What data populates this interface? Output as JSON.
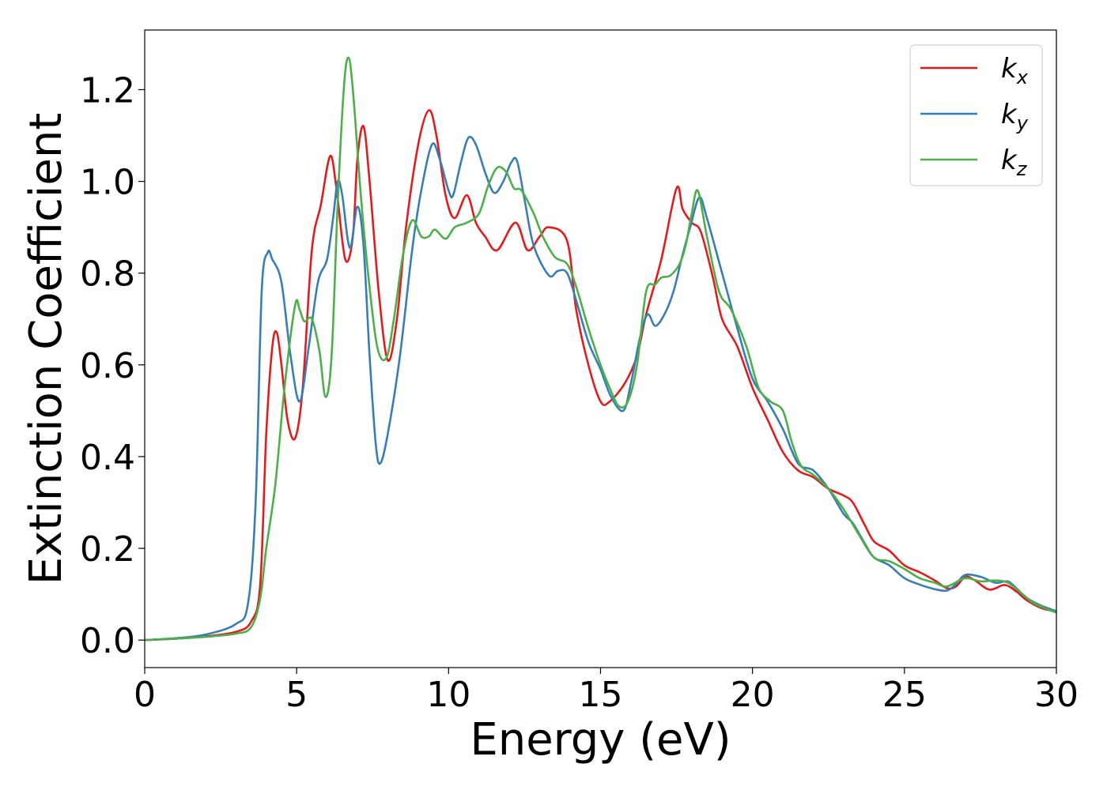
{
  "chart_data": {
    "type": "line",
    "title": "",
    "xlabel": "Energy (eV)",
    "ylabel": "Extinction Coefficient",
    "xlim": [
      0,
      30
    ],
    "ylim": [
      -0.06,
      1.33
    ],
    "x_ticks": [
      0,
      5,
      10,
      15,
      20,
      25,
      30
    ],
    "x_tick_labels": [
      "0",
      "5",
      "10",
      "15",
      "20",
      "25",
      "30"
    ],
    "y_ticks": [
      0.0,
      0.2,
      0.4,
      0.6,
      0.8,
      1.0,
      1.2
    ],
    "y_tick_labels": [
      "0.0",
      "0.2",
      "0.4",
      "0.6",
      "0.8",
      "1.0",
      "1.2"
    ],
    "grid": false,
    "legend_position": "top-right",
    "series": [
      {
        "name": "k_x",
        "label_main": "k",
        "label_sub": "x",
        "color": "#e41a1c",
        "points": [
          [
            0.0,
            0.0
          ],
          [
            1.0,
            0.003
          ],
          [
            2.0,
            0.008
          ],
          [
            3.0,
            0.018
          ],
          [
            3.5,
            0.04
          ],
          [
            3.8,
            0.12
          ],
          [
            4.0,
            0.45
          ],
          [
            4.2,
            0.64
          ],
          [
            4.35,
            0.67
          ],
          [
            4.5,
            0.6
          ],
          [
            4.7,
            0.48
          ],
          [
            4.95,
            0.44
          ],
          [
            5.2,
            0.55
          ],
          [
            5.5,
            0.85
          ],
          [
            5.8,
            0.95
          ],
          [
            6.1,
            1.055
          ],
          [
            6.3,
            0.99
          ],
          [
            6.6,
            0.83
          ],
          [
            6.85,
            0.88
          ],
          [
            7.0,
            1.05
          ],
          [
            7.2,
            1.12
          ],
          [
            7.4,
            1.0
          ],
          [
            7.7,
            0.76
          ],
          [
            8.0,
            0.61
          ],
          [
            8.3,
            0.7
          ],
          [
            8.6,
            0.9
          ],
          [
            9.0,
            1.08
          ],
          [
            9.35,
            1.155
          ],
          [
            9.6,
            1.1
          ],
          [
            9.9,
            0.97
          ],
          [
            10.2,
            0.92
          ],
          [
            10.6,
            0.97
          ],
          [
            10.9,
            0.91
          ],
          [
            11.2,
            0.88
          ],
          [
            11.6,
            0.85
          ],
          [
            12.2,
            0.91
          ],
          [
            12.6,
            0.85
          ],
          [
            13.0,
            0.88
          ],
          [
            13.3,
            0.9
          ],
          [
            13.9,
            0.87
          ],
          [
            14.2,
            0.72
          ],
          [
            14.6,
            0.6
          ],
          [
            15.0,
            0.52
          ],
          [
            15.3,
            0.52
          ],
          [
            15.8,
            0.56
          ],
          [
            16.2,
            0.62
          ],
          [
            16.5,
            0.71
          ],
          [
            17.0,
            0.83
          ],
          [
            17.5,
            0.985
          ],
          [
            17.7,
            0.94
          ],
          [
            18.0,
            0.91
          ],
          [
            18.3,
            0.89
          ],
          [
            18.7,
            0.79
          ],
          [
            19.0,
            0.7
          ],
          [
            19.5,
            0.64
          ],
          [
            20.0,
            0.55
          ],
          [
            20.5,
            0.48
          ],
          [
            21.0,
            0.41
          ],
          [
            21.5,
            0.37
          ],
          [
            22.0,
            0.355
          ],
          [
            22.5,
            0.33
          ],
          [
            23.0,
            0.315
          ],
          [
            23.3,
            0.3
          ],
          [
            23.7,
            0.25
          ],
          [
            24.0,
            0.215
          ],
          [
            24.5,
            0.195
          ],
          [
            25.0,
            0.163
          ],
          [
            25.5,
            0.148
          ],
          [
            26.0,
            0.13
          ],
          [
            26.4,
            0.113
          ],
          [
            26.7,
            0.117
          ],
          [
            27.0,
            0.138
          ],
          [
            27.3,
            0.131
          ],
          [
            27.8,
            0.11
          ],
          [
            28.3,
            0.12
          ],
          [
            28.7,
            0.105
          ],
          [
            29.0,
            0.088
          ],
          [
            29.5,
            0.07
          ],
          [
            30.0,
            0.062
          ]
        ]
      },
      {
        "name": "k_y",
        "label_main": "k",
        "label_sub": "y",
        "color": "#377eb8",
        "points": [
          [
            0.0,
            0.0
          ],
          [
            1.0,
            0.004
          ],
          [
            2.0,
            0.012
          ],
          [
            3.0,
            0.035
          ],
          [
            3.4,
            0.08
          ],
          [
            3.65,
            0.3
          ],
          [
            3.85,
            0.76
          ],
          [
            4.05,
            0.845
          ],
          [
            4.2,
            0.83
          ],
          [
            4.5,
            0.78
          ],
          [
            4.8,
            0.62
          ],
          [
            5.1,
            0.52
          ],
          [
            5.4,
            0.64
          ],
          [
            5.7,
            0.78
          ],
          [
            6.0,
            0.83
          ],
          [
            6.2,
            0.92
          ],
          [
            6.35,
            1.0
          ],
          [
            6.5,
            0.97
          ],
          [
            6.75,
            0.855
          ],
          [
            7.0,
            0.945
          ],
          [
            7.2,
            0.86
          ],
          [
            7.4,
            0.62
          ],
          [
            7.6,
            0.43
          ],
          [
            7.75,
            0.385
          ],
          [
            8.0,
            0.45
          ],
          [
            8.4,
            0.62
          ],
          [
            8.8,
            0.85
          ],
          [
            9.1,
            0.98
          ],
          [
            9.45,
            1.08
          ],
          [
            9.7,
            1.05
          ],
          [
            10.0,
            0.98
          ],
          [
            10.15,
            0.97
          ],
          [
            10.4,
            1.04
          ],
          [
            10.65,
            1.095
          ],
          [
            10.9,
            1.08
          ],
          [
            11.2,
            1.02
          ],
          [
            11.5,
            0.975
          ],
          [
            11.8,
            1.0
          ],
          [
            12.05,
            1.04
          ],
          [
            12.25,
            1.045
          ],
          [
            12.5,
            0.96
          ],
          [
            12.8,
            0.86
          ],
          [
            13.3,
            0.795
          ],
          [
            13.6,
            0.805
          ],
          [
            13.9,
            0.8
          ],
          [
            14.2,
            0.74
          ],
          [
            14.6,
            0.65
          ],
          [
            15.0,
            0.59
          ],
          [
            15.35,
            0.53
          ],
          [
            15.75,
            0.5
          ],
          [
            16.0,
            0.56
          ],
          [
            16.3,
            0.66
          ],
          [
            16.55,
            0.71
          ],
          [
            16.8,
            0.685
          ],
          [
            17.1,
            0.71
          ],
          [
            17.4,
            0.76
          ],
          [
            17.7,
            0.84
          ],
          [
            17.95,
            0.9
          ],
          [
            18.25,
            0.965
          ],
          [
            18.5,
            0.92
          ],
          [
            19.0,
            0.8
          ],
          [
            19.5,
            0.68
          ],
          [
            20.0,
            0.57
          ],
          [
            20.5,
            0.52
          ],
          [
            21.0,
            0.46
          ],
          [
            21.5,
            0.385
          ],
          [
            22.0,
            0.37
          ],
          [
            22.5,
            0.33
          ],
          [
            23.0,
            0.275
          ],
          [
            23.3,
            0.255
          ],
          [
            23.7,
            0.21
          ],
          [
            24.0,
            0.18
          ],
          [
            24.5,
            0.163
          ],
          [
            25.0,
            0.135
          ],
          [
            25.5,
            0.121
          ],
          [
            26.0,
            0.111
          ],
          [
            26.4,
            0.108
          ],
          [
            26.7,
            0.122
          ],
          [
            27.0,
            0.142
          ],
          [
            27.5,
            0.138
          ],
          [
            28.0,
            0.125
          ],
          [
            28.4,
            0.128
          ],
          [
            28.7,
            0.112
          ],
          [
            29.0,
            0.093
          ],
          [
            29.5,
            0.075
          ],
          [
            30.0,
            0.063
          ]
        ]
      },
      {
        "name": "k_z",
        "label_main": "k",
        "label_sub": "z",
        "color": "#4daf4a",
        "points": [
          [
            0.0,
            0.0
          ],
          [
            1.0,
            0.003
          ],
          [
            2.0,
            0.007
          ],
          [
            3.0,
            0.014
          ],
          [
            3.5,
            0.028
          ],
          [
            3.8,
            0.09
          ],
          [
            4.0,
            0.2
          ],
          [
            4.3,
            0.34
          ],
          [
            4.6,
            0.55
          ],
          [
            4.95,
            0.73
          ],
          [
            5.1,
            0.72
          ],
          [
            5.25,
            0.695
          ],
          [
            5.5,
            0.7
          ],
          [
            5.75,
            0.63
          ],
          [
            5.95,
            0.53
          ],
          [
            6.15,
            0.62
          ],
          [
            6.35,
            0.95
          ],
          [
            6.55,
            1.2
          ],
          [
            6.7,
            1.27
          ],
          [
            6.85,
            1.2
          ],
          [
            7.1,
            0.98
          ],
          [
            7.35,
            0.8
          ],
          [
            7.65,
            0.64
          ],
          [
            7.95,
            0.615
          ],
          [
            8.2,
            0.7
          ],
          [
            8.5,
            0.84
          ],
          [
            8.8,
            0.915
          ],
          [
            9.1,
            0.88
          ],
          [
            9.35,
            0.88
          ],
          [
            9.55,
            0.895
          ],
          [
            9.9,
            0.875
          ],
          [
            10.2,
            0.9
          ],
          [
            10.6,
            0.91
          ],
          [
            11.0,
            0.93
          ],
          [
            11.3,
            0.99
          ],
          [
            11.6,
            1.03
          ],
          [
            11.9,
            1.02
          ],
          [
            12.15,
            0.985
          ],
          [
            12.4,
            0.98
          ],
          [
            12.8,
            0.93
          ],
          [
            13.1,
            0.88
          ],
          [
            13.5,
            0.835
          ],
          [
            13.9,
            0.82
          ],
          [
            14.2,
            0.77
          ],
          [
            14.6,
            0.68
          ],
          [
            15.0,
            0.6
          ],
          [
            15.3,
            0.55
          ],
          [
            15.6,
            0.51
          ],
          [
            15.9,
            0.52
          ],
          [
            16.2,
            0.6
          ],
          [
            16.5,
            0.76
          ],
          [
            16.8,
            0.775
          ],
          [
            17.0,
            0.79
          ],
          [
            17.3,
            0.795
          ],
          [
            17.6,
            0.82
          ],
          [
            17.8,
            0.86
          ],
          [
            18.0,
            0.93
          ],
          [
            18.2,
            0.98
          ],
          [
            18.5,
            0.88
          ],
          [
            18.9,
            0.76
          ],
          [
            19.3,
            0.72
          ],
          [
            19.8,
            0.64
          ],
          [
            20.2,
            0.55
          ],
          [
            20.6,
            0.52
          ],
          [
            21.0,
            0.5
          ],
          [
            21.3,
            0.43
          ],
          [
            21.6,
            0.38
          ],
          [
            22.0,
            0.36
          ],
          [
            22.5,
            0.33
          ],
          [
            23.0,
            0.285
          ],
          [
            23.5,
            0.23
          ],
          [
            24.0,
            0.18
          ],
          [
            24.5,
            0.172
          ],
          [
            25.0,
            0.155
          ],
          [
            25.5,
            0.135
          ],
          [
            26.0,
            0.125
          ],
          [
            26.4,
            0.117
          ],
          [
            27.0,
            0.135
          ],
          [
            27.5,
            0.128
          ],
          [
            28.0,
            0.13
          ],
          [
            28.4,
            0.125
          ],
          [
            28.8,
            0.105
          ],
          [
            29.2,
            0.083
          ],
          [
            29.6,
            0.07
          ],
          [
            30.0,
            0.06
          ]
        ]
      }
    ]
  }
}
